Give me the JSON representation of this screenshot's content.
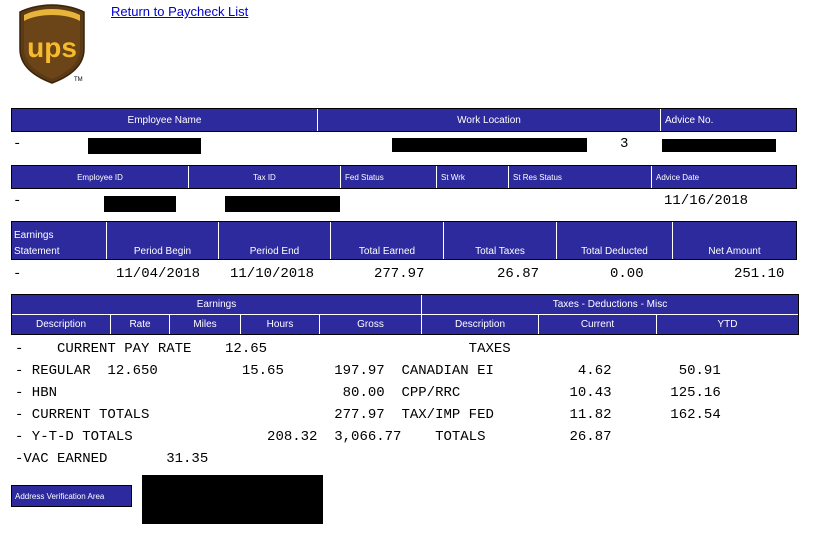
{
  "logo": {
    "text": "ups",
    "tm": "TM"
  },
  "nav": {
    "return_link": "Return to Paycheck List"
  },
  "header1": {
    "employee_name": "Employee Name",
    "work_location": "Work Location",
    "advice_no": "Advice No.",
    "row": {
      "dash": "-",
      "work_loc_suffix": "3"
    }
  },
  "header2": {
    "employee_id": "Employee ID",
    "tax_id": "Tax ID",
    "fed_status": "Fed Status",
    "st_wrk": "St Wrk",
    "st_res_status": "St Res Status",
    "advice_date": "Advice Date",
    "row": {
      "dash": "-",
      "advice_date": "11/16/2018"
    }
  },
  "earnings_summary": {
    "headers": {
      "earnings_statement_1": "Earnings",
      "earnings_statement_2": "Statement",
      "period_begin": "Period Begin",
      "period_end": "Period End",
      "total_earned": "Total Earned",
      "total_taxes": "Total Taxes",
      "total_deducted": "Total Deducted",
      "net_amount": "Net Amount"
    },
    "row": {
      "dash": "-",
      "period_begin": "11/04/2018",
      "period_end": "11/10/2018",
      "total_earned": "277.97",
      "total_taxes": "26.87",
      "total_deducted": "0.00",
      "net_amount": "251.10"
    }
  },
  "detail": {
    "group_earnings": "Earnings",
    "group_taxes": "Taxes - Deductions - Misc",
    "cols": {
      "description": "Description",
      "rate": "Rate",
      "miles": "Miles",
      "hours": "Hours",
      "gross": "Gross",
      "t_description": "Description",
      "current": "Current",
      "ytd": "YTD"
    },
    "lines": [
      "-    CURRENT PAY RATE    12.65                        TAXES",
      "- REGULAR  12.650          15.65      197.97  CANADIAN EI          4.62        50.91",
      "- HBN                                  80.00  CPP/RRC             10.43       125.16",
      "- CURRENT TOTALS                      277.97  TAX/IMP FED         11.82       162.54",
      "- Y-T-D TOTALS                208.32  3,066.77    TOTALS          26.87",
      "-VAC EARNED       31.35"
    ]
  },
  "address_verification": {
    "label": "Address Verification Area"
  }
}
